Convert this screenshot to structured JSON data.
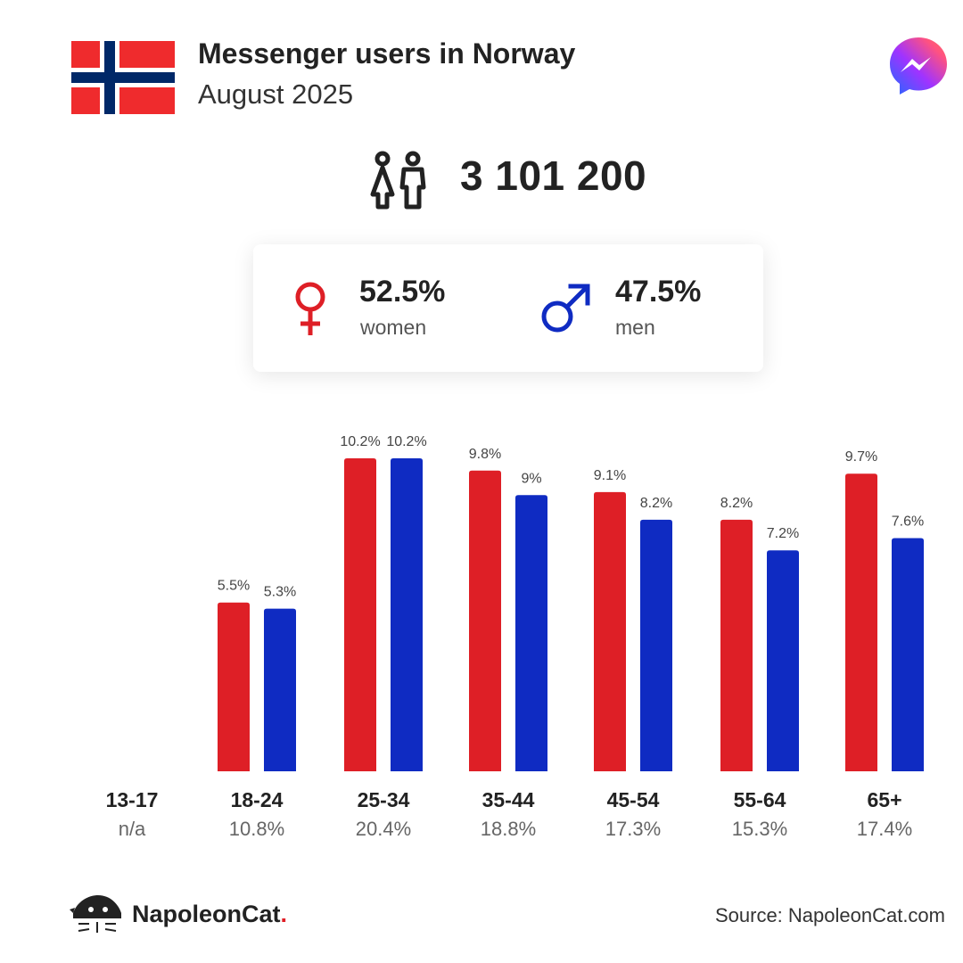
{
  "header": {
    "title": "Messenger users in Norway",
    "subtitle": "August 2025"
  },
  "icons": {
    "flag": "norway-flag-icon",
    "app": "messenger-icon",
    "users": "users-icon",
    "female": "female-icon",
    "male": "male-icon",
    "brand": "napoleoncat-logo"
  },
  "total_users": "3 101 200",
  "gender": {
    "women": {
      "percent": "52.5%",
      "label": "women"
    },
    "men": {
      "percent": "47.5%",
      "label": "men"
    }
  },
  "colors": {
    "women": "#de1f26",
    "men": "#0f2bc2",
    "flag_red": "#ef2b2d",
    "flag_blue": "#002868"
  },
  "chart_data": {
    "type": "bar",
    "categories": [
      "13-17",
      "18-24",
      "25-34",
      "35-44",
      "45-54",
      "55-64",
      "65+"
    ],
    "category_totals": [
      "n/a",
      "10.8%",
      "20.4%",
      "18.8%",
      "17.3%",
      "15.3%",
      "17.4%"
    ],
    "series": [
      {
        "name": "women",
        "values": [
          null,
          5.5,
          10.2,
          9.8,
          9.1,
          8.2,
          9.7
        ],
        "labels": [
          "",
          "5.5%",
          "10.2%",
          "9.8%",
          "9.1%",
          "8.2%",
          "9.7%"
        ]
      },
      {
        "name": "men",
        "values": [
          null,
          5.3,
          10.2,
          9.0,
          8.2,
          7.2,
          7.6
        ],
        "labels": [
          "",
          "5.3%",
          "10.2%",
          "9%",
          "8.2%",
          "7.2%",
          "7.6%"
        ]
      }
    ],
    "ylim": [
      0,
      10.2
    ],
    "grid": false
  },
  "footer": {
    "brand_name": "NapoleonCat",
    "brand_dot": ".",
    "source": "Source: NapoleonCat.com"
  }
}
